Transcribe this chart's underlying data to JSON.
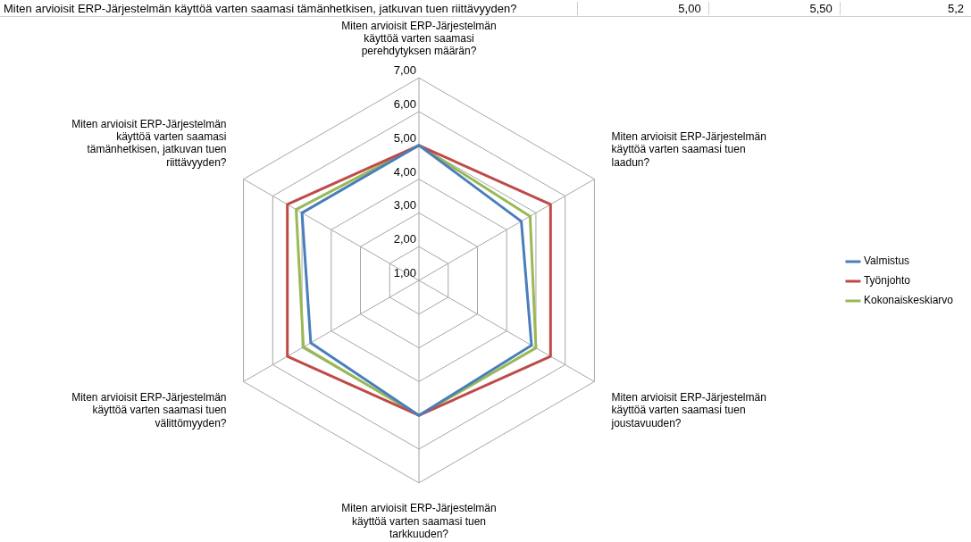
{
  "chart_data": {
    "type": "radar",
    "categories": [
      "Miten arvioisit ERP-Järjestelmän käyttöä varten saamasi perehdytyksen määrän?",
      "Miten arvioisit ERP-Järjestelmän käyttöä varten saamasi tuen laadun?",
      "Miten arvioisit ERP-Järjestelmän käyttöä varten saamasi tuen joustavuuden?",
      "Miten arvioisit ERP-Järjestelmän käyttöä varten saamasi tuen tarkkuuden?",
      "Miten arvioisit ERP-Järjestelmän käyttöä varten saamasi tuen välittömyyden?",
      "Miten arvioisit ERP-Järjestelmän käyttöä varten saamasi tämänhetkisen, jatkuvan tuen riittävyyden?"
    ],
    "series": [
      {
        "name": "Valmistus",
        "color": "#4a7ebb",
        "values": [
          5.0,
          4.5,
          4.85,
          5.0,
          4.7,
          5.0
        ]
      },
      {
        "name": "Työnjohto",
        "color": "#be4b48",
        "values": [
          5.0,
          5.5,
          5.5,
          5.0,
          5.5,
          5.5
        ]
      },
      {
        "name": "Kokonaiskeskiarvo",
        "color": "#98b954",
        "values": [
          5.0,
          4.8,
          5.0,
          5.0,
          4.95,
          5.2
        ]
      }
    ],
    "ylim": [
      1,
      7
    ],
    "yticks": [
      {
        "value": 1,
        "label": "1,00"
      },
      {
        "value": 2,
        "label": "2,00"
      },
      {
        "value": 3,
        "label": "3,00"
      },
      {
        "value": 4,
        "label": "4,00"
      },
      {
        "value": 5,
        "label": "5,00"
      },
      {
        "value": 6,
        "label": "6,00"
      },
      {
        "value": 7,
        "label": "7,00"
      }
    ],
    "grid": true,
    "legend": "right",
    "marker": "none",
    "line_style": "solid",
    "annotations": [
      "Miten arvioisit ERP-Järjestelmän käyttöä varten saamasi tämänhetkisen, jatkuvan tuen riittävyyden?",
      "5,00",
      "5,50",
      "5,2"
    ]
  }
}
